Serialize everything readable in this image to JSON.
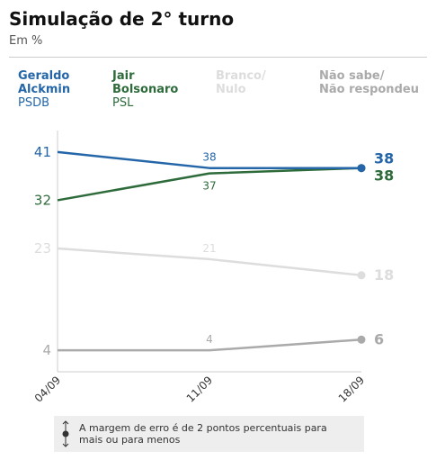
{
  "header": {
    "title": "Simulação de 2° turno",
    "subtitle": "Em %"
  },
  "legend": [
    {
      "name": "Geraldo\nAlckmin",
      "party": "PSDB"
    },
    {
      "name": "Jair\nBolsonaro",
      "party": "PSL"
    },
    {
      "name": "Branco/\nNulo",
      "party": ""
    },
    {
      "name": "Não sabe/\nNão respondeu",
      "party": ""
    }
  ],
  "note": {
    "text": "A margem de erro é de 2 pontos percentuais para mais ou para menos"
  },
  "colors": {
    "alckmin": "#2466a8",
    "bolsonaro": "#2e6b3b",
    "branco": "#dddddd",
    "naosabe": "#aaaaaa",
    "axis": "#cccccc"
  },
  "chart_data": {
    "type": "line",
    "x": [
      "04/09",
      "11/09",
      "18/09"
    ],
    "ylim": [
      0,
      45
    ],
    "grid": false,
    "series": [
      {
        "name": "Geraldo Alckmin PSDB",
        "values": [
          41,
          38,
          38
        ],
        "color": "#2466a8",
        "labels": [
          "41",
          "38",
          "38"
        ]
      },
      {
        "name": "Jair Bolsonaro PSL",
        "values": [
          32,
          37,
          38
        ],
        "color": "#2e6b3b",
        "labels": [
          "32",
          "37",
          "38"
        ]
      },
      {
        "name": "Branco/Nulo",
        "values": [
          23,
          21,
          18
        ],
        "color": "#dddddd",
        "labels": [
          "23",
          "21",
          "18"
        ]
      },
      {
        "name": "Não sabe/Não respondeu",
        "values": [
          4,
          4,
          6
        ],
        "color": "#aaaaaa",
        "labels": [
          "4",
          "4",
          "6"
        ]
      }
    ]
  }
}
